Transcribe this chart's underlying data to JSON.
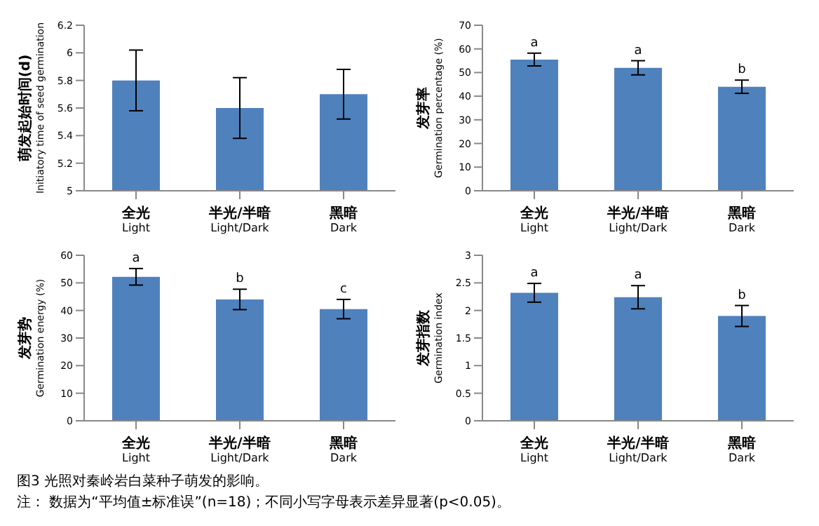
{
  "chart_data": [
    {
      "type": "bar",
      "ylabel": "萌发起始时间(d) Initiatory time of seed germination",
      "categories": [
        "全光 Light",
        "半光/半暗 Light/Dark",
        "黑暗 Dark"
      ],
      "values": [
        5.8,
        5.6,
        5.7
      ],
      "errors": [
        0.22,
        0.22,
        0.18
      ],
      "color": "#4f81bd",
      "ylim": [
        5,
        6.2
      ],
      "yticks": [
        5,
        5.2,
        5.4,
        5.6,
        5.8,
        6,
        6.2
      ],
      "grid": false
    },
    {
      "type": "bar",
      "ylabel": "发芽率 Germination percentage (%)",
      "categories": [
        "全光 Light",
        "半光/半暗 Light/Dark",
        "黑暗 Dark"
      ],
      "values": [
        55.5,
        52,
        44
      ],
      "errors": [
        2.7,
        3,
        2.8
      ],
      "color": "#4f81bd",
      "ylim": [
        0,
        70
      ],
      "yticks": [
        0,
        10,
        20,
        30,
        40,
        50,
        60,
        70
      ],
      "grid": false,
      "annotations": [
        {
          "text": "a",
          "x": "全光 Light",
          "y": 58.2
        },
        {
          "text": "a",
          "x": "半光/半暗 Light/Dark",
          "y": 55
        },
        {
          "text": "b",
          "x": "黑暗 Dark",
          "y": 46.8
        }
      ]
    },
    {
      "type": "bar",
      "ylabel": "发芽势 Germination energy (%)",
      "categories": [
        "全光 Light",
        "半光/半暗 Light/Dark",
        "黑暗 Dark"
      ],
      "values": [
        52.2,
        44,
        40.5
      ],
      "errors": [
        3,
        3.7,
        3.5
      ],
      "color": "#4f81bd",
      "ylim": [
        0,
        60
      ],
      "yticks": [
        0,
        10,
        20,
        30,
        40,
        50,
        60
      ],
      "grid": false,
      "annotations": [
        {
          "text": "a",
          "x": "全光 Light",
          "y": 55.2
        },
        {
          "text": "b",
          "x": "半光/半暗 Light/Dark",
          "y": 47.7
        },
        {
          "text": "c",
          "x": "黑暗 Dark",
          "y": 44
        }
      ]
    },
    {
      "type": "bar",
      "ylabel": "发芽指数 Germination index",
      "categories": [
        "全光 Light",
        "半光/半暗 Light/Dark",
        "黑暗 Dark"
      ],
      "values": [
        2.32,
        2.24,
        1.9
      ],
      "errors": [
        0.17,
        0.21,
        0.19
      ],
      "color": "#4f81bd",
      "ylim": [
        0,
        3
      ],
      "yticks": [
        0,
        0.5,
        1,
        1.5,
        2,
        2.5,
        3
      ],
      "grid": false,
      "annotations": [
        {
          "text": "a",
          "x": "全光 Light",
          "y": 2.49
        },
        {
          "text": "a",
          "x": "半光/半暗 Light/Dark",
          "y": 2.45
        },
        {
          "text": "b",
          "x": "黑暗 Dark",
          "y": 2.09
        }
      ]
    },
    {
      "type": "other",
      "title": "图3 光照对秦岭岩白菜种子萌发的影响。",
      "annotations": [
        "注： 数据为“平均值±标准误”(n=18)；不同小写字母表示差异显著(p<0.05)。"
      ]
    }
  ]
}
